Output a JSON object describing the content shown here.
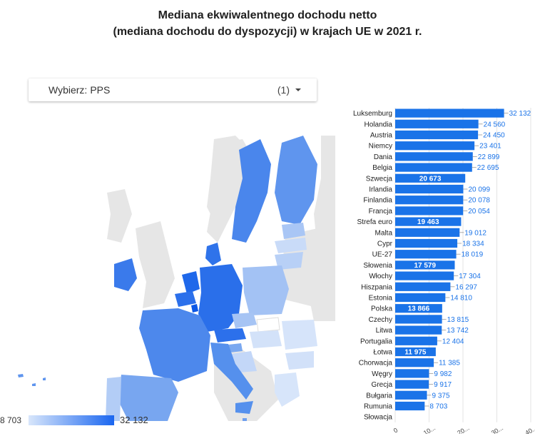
{
  "title_line1": "Mediana ekwiwalentnego dochodu netto",
  "title_line2": "(mediana dochodu do dyspozycji) w krajach UE w 2021 r.",
  "selector": {
    "label": "Wybierz:",
    "value": "PPS",
    "count": "(1)"
  },
  "legend": {
    "min": "8 703",
    "max": "32 132"
  },
  "colors": {
    "bar": "#1a73e8",
    "label": "#1a73e8",
    "map_sea": "#ffffff",
    "map_other": "#e6e6e6"
  },
  "chart_data": {
    "type": "bar",
    "orientation": "horizontal",
    "title": "Mediana ekwiwalentnego dochodu netto (mediana dochodu do dyspozycji) w krajach UE w 2021 r.",
    "categories": [
      "Luksemburg",
      "Holandia",
      "Austria",
      "Niemcy",
      "Dania",
      "Belgia",
      "Szwecja",
      "Irlandia",
      "Finlandia",
      "Francja",
      "Strefa euro",
      "Malta",
      "Cypr",
      "UE-27",
      "Słowenia",
      "Włochy",
      "Hiszpania",
      "Estonia",
      "Polska",
      "Czechy",
      "Litwa",
      "Portugalia",
      "Łotwa",
      "Chorwacja",
      "Węgry",
      "Grecja",
      "Bułgaria",
      "Rumunia",
      "Słowacja"
    ],
    "values": [
      32132,
      24560,
      24450,
      23401,
      22899,
      22695,
      20673,
      20099,
      20078,
      20054,
      19463,
      19012,
      18334,
      18019,
      17579,
      17304,
      16297,
      14810,
      13866,
      13815,
      13742,
      12404,
      11975,
      11385,
      9982,
      9917,
      9375,
      8703,
      null
    ],
    "value_labels": [
      "32 132",
      "24 560",
      "24 450",
      "23 401",
      "22 899",
      "22 695",
      "20 673",
      "20 099",
      "20 078",
      "20 054",
      "19 463",
      "19 012",
      "18 334",
      "18 019",
      "17 579",
      "17 304",
      "16 297",
      "14 810",
      "13 866",
      "13 815",
      "13 742",
      "12 404",
      "11 975",
      "11 385",
      "9 982",
      "9 917",
      "9 375",
      "8 703",
      ""
    ],
    "inside_label_indices": [
      6,
      10,
      14,
      18,
      22
    ],
    "xticks": [
      "0",
      "10...",
      "20...",
      "30...",
      "40..."
    ],
    "xlim": [
      0,
      40000
    ],
    "grid": true
  }
}
